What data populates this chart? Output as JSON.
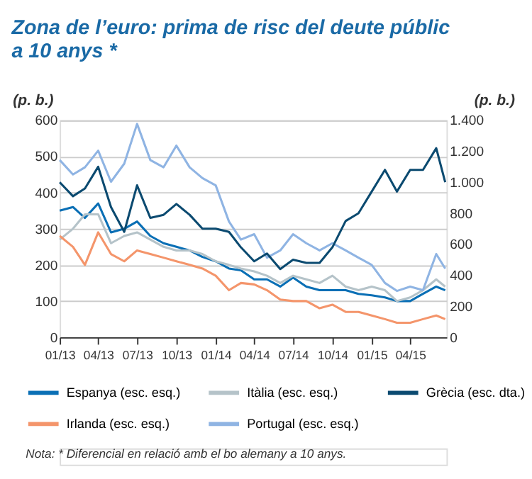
{
  "chart_data": {
    "type": "line",
    "title": "Zona de l’euro: prima de risc del deute públic a 10 anys *",
    "ylabel": "(p. b.)",
    "y2label": "(p. b.)",
    "x": [
      "2013-01-01",
      "2013-02-01",
      "2013-03-01",
      "2013-04-01",
      "2013-05-01",
      "2013-06-01",
      "2013-07-01",
      "2013-08-01",
      "2013-09-01",
      "2013-10-01",
      "2013-11-01",
      "2013-12-01",
      "2014-01-01",
      "2014-02-01",
      "2014-03-01",
      "2014-04-01",
      "2014-05-01",
      "2014-06-01",
      "2014-07-01",
      "2014-08-01",
      "2014-09-01",
      "2014-10-01",
      "2014-11-01",
      "2014-12-01",
      "2015-01-01",
      "2015-02-01",
      "2015-03-01",
      "2015-04-01",
      "2015-05-01",
      "2015-06-01",
      "2015-06-22"
    ],
    "series": [
      {
        "name": "Espanya (esc. esq.)",
        "color": "#0a6fb5",
        "values": [
          350,
          360,
          330,
          370,
          290,
          300,
          320,
          280,
          260,
          250,
          240,
          222,
          210,
          190,
          185,
          160,
          160,
          140,
          165,
          140,
          130,
          130,
          130,
          120,
          116,
          110,
          100,
          100,
          120,
          140,
          130
        ]
      },
      {
        "name": "Itàlia (esc. esq.)",
        "color": "#b5c3c9",
        "values": [
          270,
          300,
          340,
          340,
          260,
          280,
          290,
          270,
          250,
          240,
          240,
          230,
          210,
          200,
          190,
          182,
          170,
          150,
          170,
          160,
          150,
          170,
          140,
          130,
          140,
          130,
          100,
          110,
          130,
          160,
          140
        ]
      },
      {
        "name": "Grècia (esc. dta.)",
        "color": "#0b4a70",
        "axis": "y2",
        "values": [
          1000,
          910,
          960,
          1100,
          840,
          680,
          980,
          770,
          790,
          860,
          790,
          700,
          700,
          680,
          580,
          490,
          540,
          440,
          500,
          480,
          480,
          580,
          750,
          800,
          940,
          1080,
          940,
          1080,
          1080,
          1220,
          1000
        ]
      },
      {
        "name": "Irlanda (esc. esq.)",
        "color": "#f4956b",
        "values": [
          280,
          250,
          200,
          290,
          230,
          210,
          240,
          230,
          220,
          210,
          200,
          190,
          170,
          130,
          150,
          146,
          130,
          104,
          100,
          100,
          80,
          90,
          70,
          70,
          60,
          50,
          40,
          40,
          50,
          60,
          50
        ]
      },
      {
        "name": "Portugal (esc. esq.)",
        "color": "#8fb4e3",
        "values": [
          490,
          450,
          470,
          516,
          430,
          480,
          590,
          490,
          470,
          530,
          470,
          440,
          420,
          320,
          270,
          285,
          220,
          240,
          285,
          260,
          240,
          260,
          240,
          220,
          200,
          150,
          128,
          140,
          130,
          230,
          190
        ]
      }
    ],
    "xlim": [
      "2013-01-01",
      "2015-06-25"
    ],
    "xticks": [
      {
        "value": "2013-01-01",
        "label": "01/13"
      },
      {
        "value": "2013-04-01",
        "label": "04/13"
      },
      {
        "value": "2013-07-01",
        "label": "07/13"
      },
      {
        "value": "2013-10-01",
        "label": "10/13"
      },
      {
        "value": "2014-01-01",
        "label": "01/14"
      },
      {
        "value": "2014-04-01",
        "label": "04/14"
      },
      {
        "value": "2014-07-01",
        "label": "07/14"
      },
      {
        "value": "2014-10-01",
        "label": "10/14"
      },
      {
        "value": "2015-01-01",
        "label": "01/15"
      },
      {
        "value": "2015-04-01",
        "label": "04/15"
      }
    ],
    "ylim": [
      0,
      600
    ],
    "yticks": [
      0,
      100,
      200,
      300,
      400,
      500,
      600
    ],
    "y2lim": [
      0,
      1400
    ],
    "y2ticks": [
      0,
      {
        "value": 200,
        "label": "200"
      },
      {
        "value": 400,
        "label": "400"
      },
      {
        "value": 600,
        "label": "600"
      },
      {
        "value": 800,
        "label": "800"
      },
      {
        "value": 1000,
        "label": "1.000"
      },
      {
        "value": 1200,
        "label": "1.200"
      },
      {
        "value": 1400,
        "label": "1.400"
      }
    ],
    "grid": "y",
    "legend": "bottom",
    "line_style": "solid",
    "annotations": [
      "Nota: * Diferencial en relació amb el bo alemany a 10 anys."
    ]
  }
}
